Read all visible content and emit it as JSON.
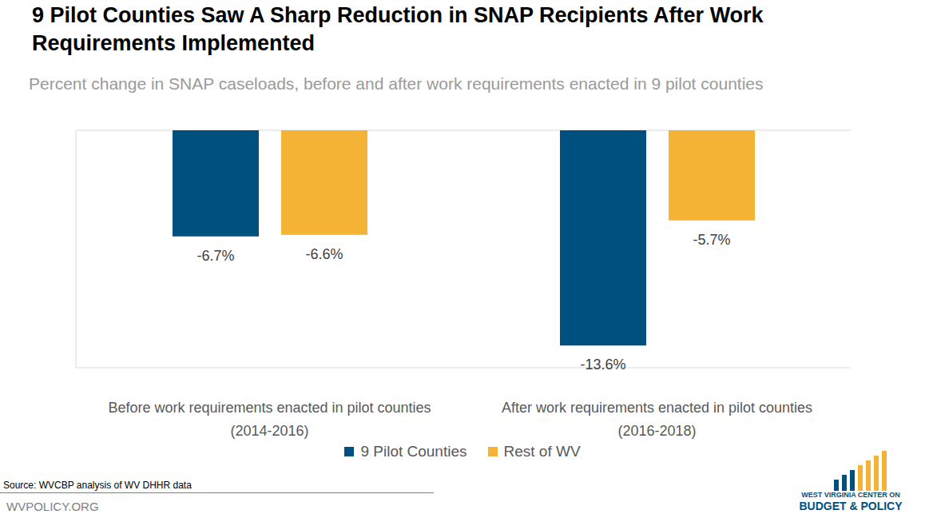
{
  "chart_data": {
    "type": "bar",
    "title": "9 Pilot Counties Saw A Sharp Reduction in SNAP Recipients After Work Requirements Implemented",
    "subtitle": "Percent change in SNAP caseloads, before and after work requirements enacted in 9 pilot counties",
    "categories": [
      "Before work requirements enacted in pilot counties (2014-2016)",
      "After work requirements enacted in pilot counties (2016-2018)"
    ],
    "series": [
      {
        "name": "9 Pilot Counties",
        "color": "#00507f",
        "values": [
          -6.7,
          -13.6
        ],
        "value_labels": [
          "-6.7%",
          "-13.6%"
        ]
      },
      {
        "name": "Rest of WV",
        "color": "#f5b335",
        "values": [
          -6.6,
          -5.7
        ],
        "value_labels": [
          "-6.6%",
          "-5.7%"
        ]
      }
    ],
    "ylim": [
      -15,
      0
    ],
    "yticks": [
      0
    ],
    "grid": true,
    "data_labels": true,
    "tick_labels": "x",
    "legend": "bottom"
  },
  "footer": {
    "source": "Source: WVCBP analysis of WV DHHR data",
    "website": "WVPOLICY.ORG",
    "logo": [
      "WEST VIRGINIA CENTER ON",
      "BUDGET & POLICY"
    ]
  }
}
